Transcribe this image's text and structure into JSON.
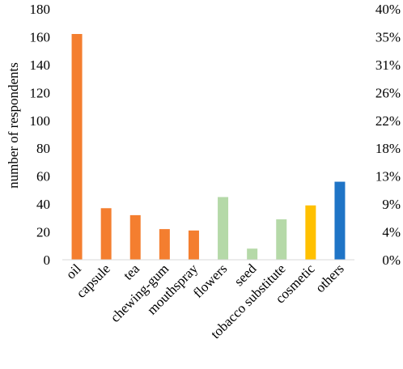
{
  "chart_data": {
    "type": "bar",
    "categories": [
      "oil",
      "capsule",
      "tea",
      "chewing-gum",
      "mouthspray",
      "flowers",
      "seed",
      "tobacco substitute",
      "cosmetic",
      "others"
    ],
    "values": [
      162,
      37,
      32,
      22,
      21,
      45,
      8,
      29,
      39,
      56
    ],
    "colors": [
      "#F47E2F",
      "#F47E2F",
      "#F47E2F",
      "#F47E2F",
      "#F47E2F",
      "#B5D9A8",
      "#B5D9A8",
      "#B5D9A8",
      "#FFC000",
      "#1F74C6"
    ],
    "ylabel": "number of respondents",
    "ylim": [
      0,
      180
    ],
    "yticks": [
      0,
      20,
      40,
      60,
      80,
      100,
      120,
      140,
      160,
      180
    ],
    "y2ticks": [
      "0%",
      "4%",
      "9%",
      "13%",
      "18%",
      "22%",
      "26%",
      "31%",
      "35%",
      "40%"
    ],
    "grid": false,
    "legend": "none"
  }
}
